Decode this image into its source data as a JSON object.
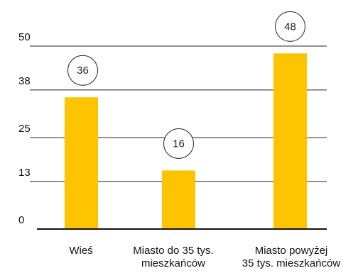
{
  "chart_data": {
    "type": "bar",
    "categories": [
      [
        "Wieś"
      ],
      [
        "Miasto do 35 tys.",
        "mieszkańców"
      ],
      [
        "Miasto powyżej",
        "35 tys. mieszkańców"
      ]
    ],
    "values": [
      36,
      16,
      48
    ],
    "data_labels": [
      "36",
      "16",
      "48"
    ],
    "yticks": [
      0,
      13,
      25,
      38,
      50
    ],
    "ytick_labels": [
      "0",
      "13",
      "25",
      "38",
      "50"
    ],
    "ylim": [
      0,
      50
    ],
    "grid": true,
    "legend": "none",
    "colors": {
      "bar": "#FFC400",
      "gridline": "#222222",
      "axis": "#111111",
      "label_circle_stroke": "#222222",
      "label_circle_fill": "#ffffff"
    }
  }
}
